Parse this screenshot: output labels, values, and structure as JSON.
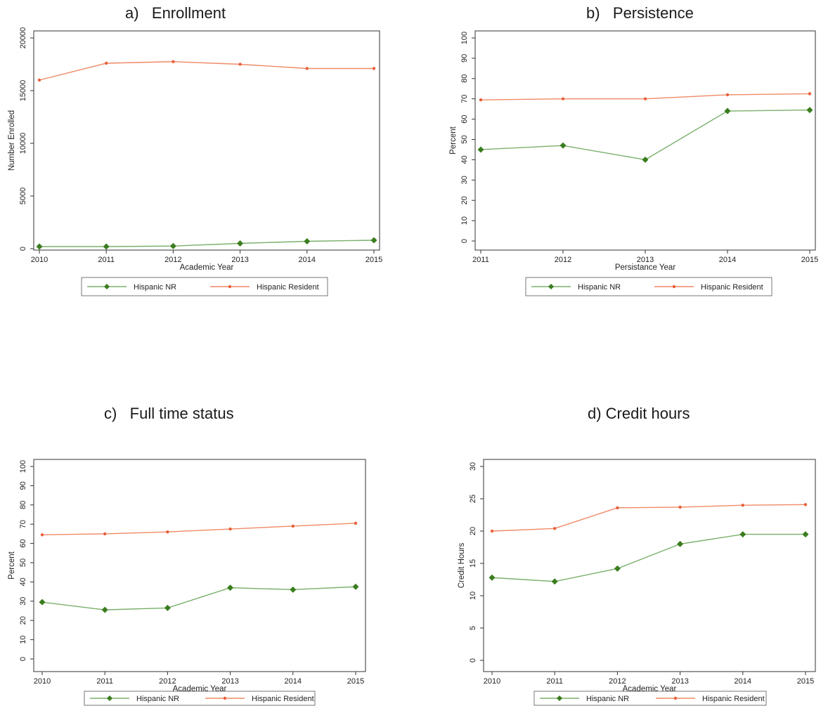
{
  "colors": {
    "nr": "#3a7d1e",
    "nr_line": "#7ab06a",
    "res": "#e8603a",
    "res_line": "#ef8a66",
    "axis": "#333333"
  },
  "chart_data": [
    {
      "panel_title": "a)   Enrollment",
      "type": "line",
      "x": [
        2010,
        2011,
        2012,
        2013,
        2014,
        2015
      ],
      "x_ticks": [
        "2010",
        "2011",
        "2012",
        "2013",
        "2014",
        "2015"
      ],
      "xlabel": "Academic Year",
      "ylabel": "Number Enrolled",
      "ylim": [
        0,
        20000
      ],
      "y_ticks": [
        "0",
        "5000",
        "10000",
        "15000",
        "20000"
      ],
      "y_tick_values": [
        0,
        5000,
        10000,
        15000,
        20000
      ],
      "series": [
        {
          "name": "Hispanic NR",
          "values": [
            200,
            200,
            250,
            500,
            700,
            800
          ]
        },
        {
          "name": "Hispanic Resident",
          "values": [
            16000,
            17600,
            17750,
            17500,
            17100,
            17100
          ]
        }
      ],
      "legend": "bottom"
    },
    {
      "panel_title": "b)   Persistence",
      "type": "line",
      "x": [
        2011,
        2012,
        2013,
        2014,
        2015
      ],
      "x_ticks": [
        "2011",
        "2012",
        "2013",
        "2014",
        "2015"
      ],
      "xlabel": "Persistance Year",
      "ylabel": "Percent",
      "ylim": [
        0,
        100
      ],
      "y_ticks": [
        "0",
        "10",
        "20",
        "30",
        "40",
        "50",
        "60",
        "70",
        "80",
        "90",
        "100"
      ],
      "y_tick_values": [
        0,
        10,
        20,
        30,
        40,
        50,
        60,
        70,
        80,
        90,
        100
      ],
      "series": [
        {
          "name": "Hispanic NR",
          "values": [
            45,
            47,
            40,
            64,
            64.5
          ]
        },
        {
          "name": "Hispanic Resident",
          "values": [
            69.5,
            70,
            70,
            72,
            72.5
          ]
        }
      ],
      "legend": "bottom"
    },
    {
      "panel_title": "c)   Full time status",
      "type": "line",
      "x": [
        2010,
        2011,
        2012,
        2013,
        2014,
        2015
      ],
      "x_ticks": [
        "2010",
        "2011",
        "2012",
        "2013",
        "2014",
        "2015"
      ],
      "xlabel": "Academic Year",
      "ylabel": "Percent",
      "ylim": [
        0,
        100
      ],
      "y_ticks": [
        "0",
        "10",
        "20",
        "30",
        "40",
        "50",
        "60",
        "70",
        "80",
        "90",
        "100"
      ],
      "y_tick_values": [
        0,
        10,
        20,
        30,
        40,
        50,
        60,
        70,
        80,
        90,
        100
      ],
      "series": [
        {
          "name": "Hispanic NR",
          "values": [
            29.5,
            25.5,
            26.5,
            37,
            36,
            37.5
          ]
        },
        {
          "name": "Hispanic Resident",
          "values": [
            64.5,
            65,
            66,
            67.5,
            69,
            70.5
          ]
        }
      ],
      "legend": "bottom"
    },
    {
      "panel_title": "d) Credit hours",
      "type": "line",
      "x": [
        2010,
        2011,
        2012,
        2013,
        2014,
        2015
      ],
      "x_ticks": [
        "2010",
        "2011",
        "2012",
        "2013",
        "2014",
        "2015"
      ],
      "xlabel": "Academic Year",
      "ylabel": "Credit Hours",
      "ylim": [
        0,
        30
      ],
      "y_ticks": [
        "0",
        "5",
        "10",
        "15",
        "20",
        "25",
        "30"
      ],
      "y_tick_values": [
        0,
        5,
        10,
        15,
        20,
        25,
        30
      ],
      "series": [
        {
          "name": "Hispanic NR",
          "values": [
            12.8,
            12.2,
            14.2,
            18,
            19.5,
            19.5
          ]
        },
        {
          "name": "Hispanic Resident",
          "values": [
            20,
            20.4,
            23.6,
            23.7,
            24,
            24.1
          ]
        }
      ],
      "legend": "bottom"
    }
  ]
}
